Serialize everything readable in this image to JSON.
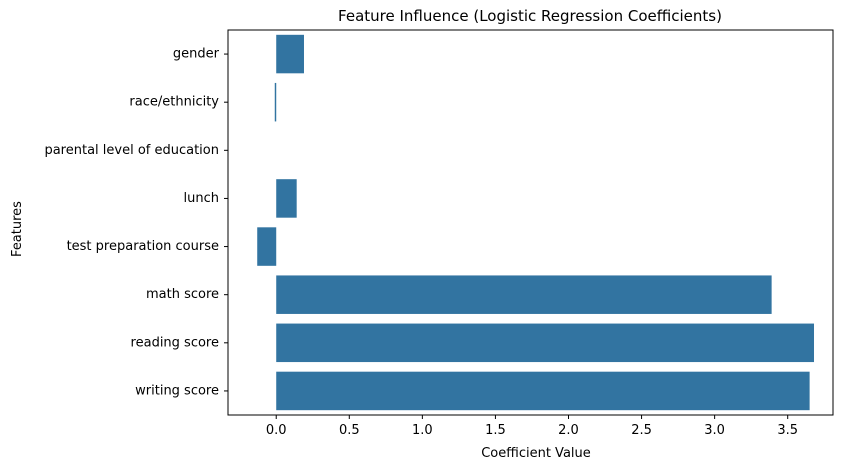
{
  "chart_data": {
    "type": "bar",
    "orientation": "horizontal",
    "title": "Feature Influence (Logistic Regression Coefficients)",
    "xlabel": "Coefficient Value",
    "ylabel": "Features",
    "categories": [
      "gender",
      "race/ethnicity",
      "parental level of education",
      "lunch",
      "test preparation course",
      "math score",
      "reading score",
      "writing score"
    ],
    "values": [
      0.19,
      -0.01,
      0.0,
      0.14,
      -0.13,
      3.39,
      3.68,
      3.65
    ],
    "xlim": [
      -0.33,
      3.81
    ],
    "xticks": [
      0.0,
      0.5,
      1.0,
      1.5,
      2.0,
      2.5,
      3.0,
      3.5
    ],
    "xtick_labels": [
      "0.0",
      "0.5",
      "1.0",
      "1.5",
      "2.0",
      "2.5",
      "3.0",
      "3.5"
    ],
    "grid": false,
    "legend": "none",
    "bar_color": "#3274a1"
  }
}
